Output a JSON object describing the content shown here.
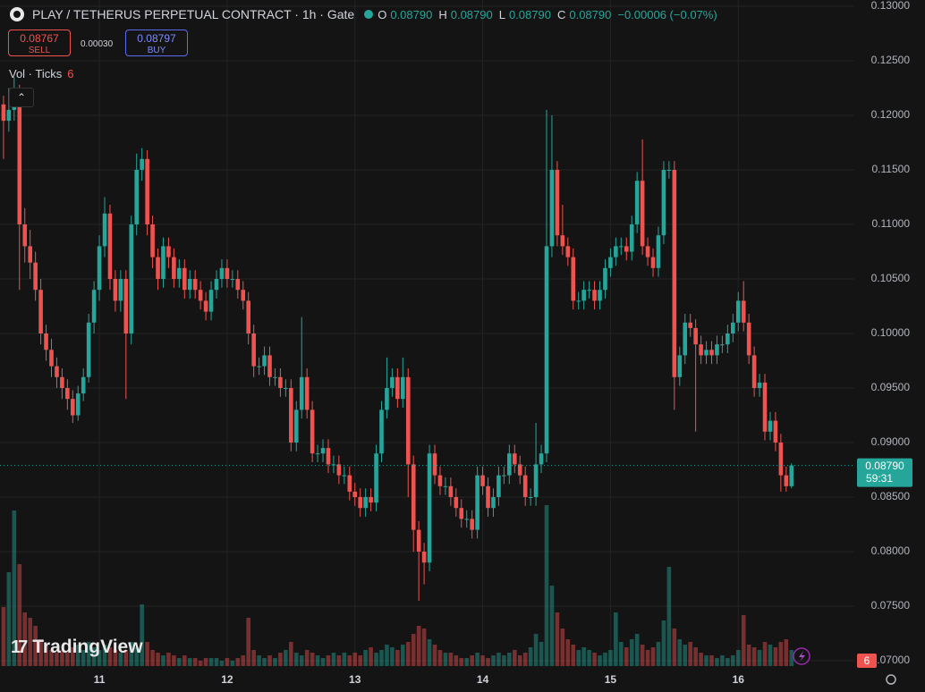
{
  "chart_data": {
    "type": "candlestick",
    "title": "PLAY / TETHERUS PERPETUAL CONTRACT · 1h · Gate",
    "header": {
      "o_label": "O",
      "open": "0.08790",
      "h_label": "H",
      "high": "0.08790",
      "l_label": "L",
      "low": "0.08790",
      "c_label": "C",
      "close": "0.08790",
      "change": "−0.00006 (−0.07%)"
    },
    "sell": {
      "price": "0.08767",
      "label": "SELL"
    },
    "spread": "0.00030",
    "buy": {
      "price": "0.08797",
      "label": "BUY"
    },
    "volume_legend": "Vol · Ticks",
    "brand": "TradingView",
    "up_color": "#26a69a",
    "down_color": "#ef5350",
    "last_price": {
      "value": 0.0879,
      "label": "0.08790"
    },
    "countdown": "59:31",
    "xlim": [
      -0.66,
      159.8
    ],
    "xticks": [
      {
        "value": 18,
        "label": "11"
      },
      {
        "value": 42,
        "label": "12"
      },
      {
        "value": 66,
        "label": "13"
      },
      {
        "value": 90,
        "label": "14"
      },
      {
        "value": 114,
        "label": "15"
      },
      {
        "value": 138,
        "label": "16"
      }
    ],
    "ylim": [
      0.07,
      0.13
    ],
    "yticks": [
      {
        "value": 0.07,
        "label": "0.07000"
      },
      {
        "value": 0.075,
        "label": "0.07500"
      },
      {
        "value": 0.08,
        "label": "0.08000"
      },
      {
        "value": 0.085,
        "label": "0.08500"
      },
      {
        "value": 0.09,
        "label": "0.09000"
      },
      {
        "value": 0.095,
        "label": "0.09500"
      },
      {
        "value": 0.1,
        "label": "0.10000"
      },
      {
        "value": 0.105,
        "label": "0.10500"
      },
      {
        "value": 0.11,
        "label": "0.11000"
      },
      {
        "value": 0.115,
        "label": "0.11500"
      },
      {
        "value": 0.12,
        "label": "0.12000"
      },
      {
        "value": 0.125,
        "label": "0.12500"
      },
      {
        "value": 0.13,
        "label": "0.13000"
      }
    ],
    "vlim": [
      0,
      80
    ],
    "grid": true,
    "open": [
      0.121,
      0.1195,
      0.1205,
      0.122,
      0.11,
      0.108,
      0.1065,
      0.104,
      0.1,
      0.0985,
      0.097,
      0.096,
      0.095,
      0.094,
      0.0925,
      0.0945,
      0.096,
      0.101,
      0.104,
      0.108,
      0.111,
      0.105,
      0.103,
      0.105,
      0.1,
      0.11,
      0.115,
      0.116,
      0.11,
      0.107,
      0.105,
      0.108,
      0.107,
      0.105,
      0.106,
      0.104,
      0.105,
      0.104,
      0.103,
      0.102,
      0.104,
      0.105,
      0.106,
      0.105,
      0.105,
      0.104,
      0.103,
      0.1,
      0.097,
      0.097,
      0.098,
      0.096,
      0.096,
      0.095,
      0.095,
      0.09,
      0.093,
      0.096,
      0.093,
      0.089,
      0.089,
      0.0895,
      0.088,
      0.088,
      0.087,
      0.087,
      0.0855,
      0.085,
      0.084,
      0.085,
      0.0845,
      0.089,
      0.093,
      0.095,
      0.096,
      0.094,
      0.096,
      0.088,
      0.082,
      0.08,
      0.079,
      0.089,
      0.087,
      0.086,
      0.086,
      0.085,
      0.084,
      0.083,
      0.083,
      0.082,
      0.087,
      0.086,
      0.084,
      0.085,
      0.087,
      0.087,
      0.089,
      0.088,
      0.087,
      0.085,
      0.085,
      0.088,
      0.089,
      0.108,
      0.115,
      0.109,
      0.108,
      0.107,
      0.103,
      0.103,
      0.104,
      0.104,
      0.103,
      0.104,
      0.106,
      0.107,
      0.108,
      0.108,
      0.1075,
      0.11,
      0.114,
      0.108,
      0.107,
      0.106,
      0.109,
      0.115,
      0.115,
      0.096,
      0.098,
      0.101,
      0.1005,
      0.099,
      0.098,
      0.0985,
      0.098,
      0.099,
      0.099,
      0.1,
      0.101,
      0.103,
      0.101,
      0.098,
      0.095,
      0.0955,
      0.091,
      0.092,
      0.09,
      0.087,
      0.086
    ],
    "high": [
      0.1218,
      0.1225,
      0.1235,
      0.1228,
      0.1115,
      0.1095,
      0.1075,
      0.105,
      0.1008,
      0.0995,
      0.0978,
      0.0968,
      0.0958,
      0.0948,
      0.0952,
      0.0968,
      0.1018,
      0.1048,
      0.109,
      0.1125,
      0.1118,
      0.1058,
      0.1058,
      0.1058,
      0.1108,
      0.1165,
      0.117,
      0.1168,
      0.1108,
      0.1078,
      0.1088,
      0.1088,
      0.1078,
      0.1068,
      0.1068,
      0.1058,
      0.1058,
      0.1048,
      0.1038,
      0.1048,
      0.1058,
      0.1068,
      0.1068,
      0.1058,
      0.1058,
      0.1048,
      0.1038,
      0.1008,
      0.0978,
      0.0988,
      0.0988,
      0.0968,
      0.0968,
      0.0958,
      0.0958,
      0.0938,
      0.1015,
      0.0968,
      0.0938,
      0.0898,
      0.0903,
      0.0903,
      0.0888,
      0.0888,
      0.0878,
      0.0878,
      0.0863,
      0.0858,
      0.0858,
      0.0858,
      0.0898,
      0.0938,
      0.0978,
      0.0968,
      0.0968,
      0.0978,
      0.0968,
      0.0888,
      0.0828,
      0.0808,
      0.0898,
      0.0898,
      0.0878,
      0.0868,
      0.0868,
      0.0858,
      0.0848,
      0.0838,
      0.0838,
      0.0878,
      0.0878,
      0.0868,
      0.0858,
      0.0878,
      0.0878,
      0.0898,
      0.0898,
      0.0888,
      0.0878,
      0.0858,
      0.0918,
      0.0898,
      0.1205,
      0.12,
      0.1158,
      0.1118,
      0.1088,
      0.1078,
      0.1038,
      0.1048,
      0.1048,
      0.1048,
      0.1048,
      0.1068,
      0.1078,
      0.1088,
      0.1088,
      0.1088,
      0.1108,
      0.1148,
      0.1178,
      0.1088,
      0.1078,
      0.1098,
      0.1158,
      0.1158,
      0.1158,
      0.0988,
      0.1018,
      0.1018,
      0.1013,
      0.0998,
      0.0993,
      0.0993,
      0.0998,
      0.0998,
      0.1008,
      0.1018,
      0.1038,
      0.1048,
      0.1018,
      0.0988,
      0.0963,
      0.0963,
      0.0928,
      0.0928,
      0.0908,
      0.0878,
      0.0881
    ],
    "low": [
      0.116,
      0.1185,
      0.1195,
      0.104,
      0.1065,
      0.105,
      0.103,
      0.099,
      0.0975,
      0.096,
      0.095,
      0.094,
      0.093,
      0.0918,
      0.092,
      0.0938,
      0.0955,
      0.1,
      0.103,
      0.107,
      0.104,
      0.102,
      0.102,
      0.094,
      0.099,
      0.109,
      0.114,
      0.109,
      0.106,
      0.104,
      0.1042,
      0.106,
      0.1042,
      0.1042,
      0.1032,
      0.1032,
      0.1032,
      0.1022,
      0.1012,
      0.1012,
      0.1032,
      0.1042,
      0.1042,
      0.1042,
      0.1032,
      0.1022,
      0.099,
      0.096,
      0.0962,
      0.0962,
      0.0952,
      0.0952,
      0.0942,
      0.0942,
      0.0892,
      0.0892,
      0.0922,
      0.0922,
      0.0882,
      0.0882,
      0.0882,
      0.0872,
      0.0872,
      0.0862,
      0.0862,
      0.0847,
      0.0842,
      0.0832,
      0.0832,
      0.0837,
      0.0837,
      0.0882,
      0.0922,
      0.0942,
      0.0932,
      0.0932,
      0.085,
      0.08,
      0.0755,
      0.077,
      0.0782,
      0.0862,
      0.0852,
      0.0852,
      0.0842,
      0.0832,
      0.0822,
      0.0822,
      0.0812,
      0.0812,
      0.0852,
      0.0832,
      0.0832,
      0.0842,
      0.0862,
      0.0862,
      0.0872,
      0.0862,
      0.0842,
      0.0842,
      0.0842,
      0.0872,
      0.0882,
      0.107,
      0.108,
      0.1072,
      0.1062,
      0.1022,
      0.1022,
      0.1022,
      0.1032,
      0.1022,
      0.1022,
      0.1032,
      0.1052,
      0.1062,
      0.1072,
      0.1067,
      0.1067,
      0.1092,
      0.1072,
      0.1062,
      0.1052,
      0.1052,
      0.1082,
      0.1142,
      0.093,
      0.0952,
      0.0972,
      0.0997,
      0.091,
      0.0972,
      0.0972,
      0.0972,
      0.0972,
      0.0982,
      0.0982,
      0.0992,
      0.1002,
      0.1002,
      0.0972,
      0.0942,
      0.0942,
      0.0902,
      0.0902,
      0.0892,
      0.0855,
      0.0855,
      0.0858
    ],
    "close": [
      0.1195,
      0.1205,
      0.122,
      0.11,
      0.108,
      0.1065,
      0.104,
      0.1,
      0.0985,
      0.097,
      0.096,
      0.095,
      0.094,
      0.0925,
      0.0945,
      0.096,
      0.101,
      0.104,
      0.108,
      0.111,
      0.105,
      0.103,
      0.105,
      0.1,
      0.11,
      0.115,
      0.116,
      0.11,
      0.107,
      0.105,
      0.108,
      0.107,
      0.105,
      0.106,
      0.104,
      0.105,
      0.104,
      0.103,
      0.102,
      0.104,
      0.105,
      0.106,
      0.105,
      0.105,
      0.104,
      0.103,
      0.1,
      0.097,
      0.097,
      0.098,
      0.096,
      0.096,
      0.095,
      0.095,
      0.09,
      0.093,
      0.096,
      0.093,
      0.089,
      0.089,
      0.0895,
      0.088,
      0.088,
      0.087,
      0.087,
      0.0855,
      0.085,
      0.084,
      0.085,
      0.0845,
      0.089,
      0.093,
      0.095,
      0.096,
      0.094,
      0.096,
      0.088,
      0.082,
      0.08,
      0.079,
      0.089,
      0.087,
      0.086,
      0.086,
      0.085,
      0.084,
      0.083,
      0.083,
      0.082,
      0.087,
      0.086,
      0.084,
      0.085,
      0.087,
      0.087,
      0.089,
      0.088,
      0.087,
      0.085,
      0.085,
      0.088,
      0.089,
      0.108,
      0.115,
      0.109,
      0.108,
      0.107,
      0.103,
      0.103,
      0.104,
      0.104,
      0.103,
      0.104,
      0.106,
      0.107,
      0.108,
      0.108,
      0.1075,
      0.11,
      0.114,
      0.108,
      0.107,
      0.106,
      0.109,
      0.115,
      0.115,
      0.096,
      0.098,
      0.101,
      0.1005,
      0.099,
      0.098,
      0.0985,
      0.098,
      0.099,
      0.099,
      0.1,
      0.101,
      0.103,
      0.101,
      0.098,
      0.095,
      0.0955,
      0.091,
      0.092,
      0.09,
      0.087,
      0.086,
      0.0879
    ],
    "volume": [
      22,
      35,
      58,
      38,
      20,
      18,
      15,
      10,
      8,
      6,
      5,
      6,
      5,
      7,
      8,
      6,
      9,
      7,
      6,
      8,
      7,
      6,
      5,
      6,
      9,
      7,
      23,
      9,
      6,
      5,
      4,
      5,
      4,
      3,
      4,
      3,
      3,
      2,
      3,
      3,
      3,
      2,
      3,
      2,
      3,
      4,
      18,
      6,
      4,
      3,
      4,
      3,
      5,
      6,
      9,
      5,
      4,
      6,
      5,
      4,
      3,
      4,
      5,
      4,
      5,
      4,
      5,
      4,
      6,
      7,
      5,
      6,
      8,
      7,
      6,
      8,
      9,
      12,
      15,
      14,
      10,
      8,
      6,
      5,
      5,
      4,
      3,
      3,
      4,
      5,
      4,
      3,
      4,
      5,
      4,
      5,
      6,
      4,
      5,
      7,
      12,
      9,
      60,
      30,
      20,
      14,
      10,
      8,
      6,
      7,
      6,
      5,
      4,
      5,
      6,
      20,
      9,
      7,
      10,
      12,
      8,
      6,
      7,
      9,
      17,
      37,
      14,
      10,
      8,
      9,
      7,
      5,
      4,
      4,
      3,
      4,
      3,
      4,
      6,
      19,
      8,
      7,
      6,
      9,
      8,
      7,
      9,
      10,
      6
    ]
  }
}
